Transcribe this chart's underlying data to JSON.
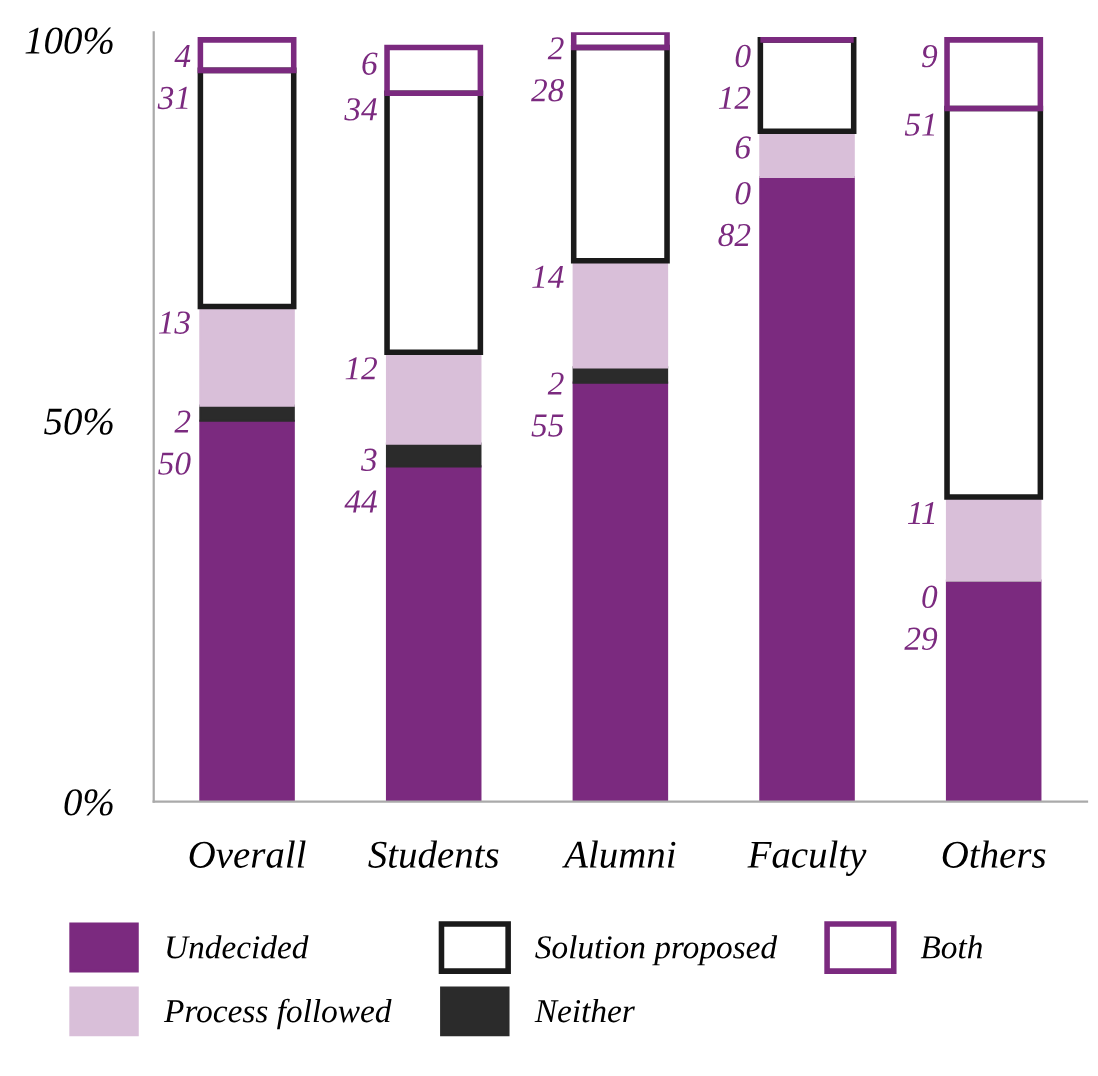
{
  "chart_data": {
    "type": "bar",
    "stacked": true,
    "categories": [
      "Overall",
      "Students",
      "Alumni",
      "Faculty",
      "Others"
    ],
    "series": [
      {
        "name": "Undecided",
        "color": "#7b2a7f",
        "values": [
          50,
          44,
          55,
          82,
          29
        ]
      },
      {
        "name": "Neither",
        "color": "#2b2b2b",
        "values": [
          2,
          3,
          2,
          0,
          0
        ]
      },
      {
        "name": "Process followed",
        "color": "#d9bfd9",
        "values": [
          13,
          12,
          14,
          6,
          11
        ]
      },
      {
        "name": "Solution proposed",
        "color": "#1a1a1a",
        "line_style": "solid",
        "values": [
          31,
          34,
          28,
          12,
          51
        ]
      },
      {
        "name": "Both",
        "color": "#7b2a7f",
        "line_style": "solid",
        "values": [
          4,
          6,
          2,
          0,
          9
        ]
      }
    ],
    "ylim": [
      0,
      101
    ],
    "yticks": [
      {
        "value": 0,
        "label": "0%"
      },
      {
        "value": 50,
        "label": "50%"
      },
      {
        "value": 100,
        "label": "100%"
      }
    ],
    "data_labels": true,
    "legend": "bottom",
    "grid": false
  }
}
